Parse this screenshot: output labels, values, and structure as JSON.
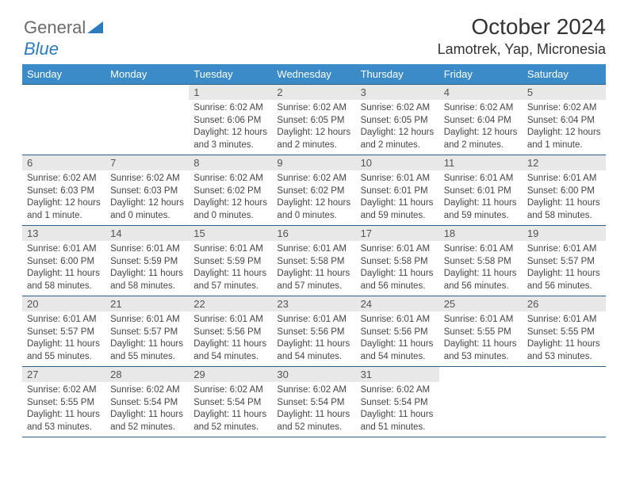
{
  "logo": {
    "part1": "General",
    "part2": "Blue"
  },
  "header": {
    "title": "October 2024",
    "location": "Lamotrek, Yap, Micronesia"
  },
  "colors": {
    "header_bg": "#3b8bc8",
    "header_text": "#ffffff",
    "row_border": "#2f5d84",
    "daynum_bg": "#e8e8e8",
    "logo_blue": "#2b7bbf"
  },
  "weekdays": [
    "Sunday",
    "Monday",
    "Tuesday",
    "Wednesday",
    "Thursday",
    "Friday",
    "Saturday"
  ],
  "weeks": [
    [
      null,
      null,
      {
        "n": "1",
        "sr": "Sunrise: 6:02 AM",
        "ss": "Sunset: 6:06 PM",
        "dl": "Daylight: 12 hours and 3 minutes."
      },
      {
        "n": "2",
        "sr": "Sunrise: 6:02 AM",
        "ss": "Sunset: 6:05 PM",
        "dl": "Daylight: 12 hours and 2 minutes."
      },
      {
        "n": "3",
        "sr": "Sunrise: 6:02 AM",
        "ss": "Sunset: 6:05 PM",
        "dl": "Daylight: 12 hours and 2 minutes."
      },
      {
        "n": "4",
        "sr": "Sunrise: 6:02 AM",
        "ss": "Sunset: 6:04 PM",
        "dl": "Daylight: 12 hours and 2 minutes."
      },
      {
        "n": "5",
        "sr": "Sunrise: 6:02 AM",
        "ss": "Sunset: 6:04 PM",
        "dl": "Daylight: 12 hours and 1 minute."
      }
    ],
    [
      {
        "n": "6",
        "sr": "Sunrise: 6:02 AM",
        "ss": "Sunset: 6:03 PM",
        "dl": "Daylight: 12 hours and 1 minute."
      },
      {
        "n": "7",
        "sr": "Sunrise: 6:02 AM",
        "ss": "Sunset: 6:03 PM",
        "dl": "Daylight: 12 hours and 0 minutes."
      },
      {
        "n": "8",
        "sr": "Sunrise: 6:02 AM",
        "ss": "Sunset: 6:02 PM",
        "dl": "Daylight: 12 hours and 0 minutes."
      },
      {
        "n": "9",
        "sr": "Sunrise: 6:02 AM",
        "ss": "Sunset: 6:02 PM",
        "dl": "Daylight: 12 hours and 0 minutes."
      },
      {
        "n": "10",
        "sr": "Sunrise: 6:01 AM",
        "ss": "Sunset: 6:01 PM",
        "dl": "Daylight: 11 hours and 59 minutes."
      },
      {
        "n": "11",
        "sr": "Sunrise: 6:01 AM",
        "ss": "Sunset: 6:01 PM",
        "dl": "Daylight: 11 hours and 59 minutes."
      },
      {
        "n": "12",
        "sr": "Sunrise: 6:01 AM",
        "ss": "Sunset: 6:00 PM",
        "dl": "Daylight: 11 hours and 58 minutes."
      }
    ],
    [
      {
        "n": "13",
        "sr": "Sunrise: 6:01 AM",
        "ss": "Sunset: 6:00 PM",
        "dl": "Daylight: 11 hours and 58 minutes."
      },
      {
        "n": "14",
        "sr": "Sunrise: 6:01 AM",
        "ss": "Sunset: 5:59 PM",
        "dl": "Daylight: 11 hours and 58 minutes."
      },
      {
        "n": "15",
        "sr": "Sunrise: 6:01 AM",
        "ss": "Sunset: 5:59 PM",
        "dl": "Daylight: 11 hours and 57 minutes."
      },
      {
        "n": "16",
        "sr": "Sunrise: 6:01 AM",
        "ss": "Sunset: 5:58 PM",
        "dl": "Daylight: 11 hours and 57 minutes."
      },
      {
        "n": "17",
        "sr": "Sunrise: 6:01 AM",
        "ss": "Sunset: 5:58 PM",
        "dl": "Daylight: 11 hours and 56 minutes."
      },
      {
        "n": "18",
        "sr": "Sunrise: 6:01 AM",
        "ss": "Sunset: 5:58 PM",
        "dl": "Daylight: 11 hours and 56 minutes."
      },
      {
        "n": "19",
        "sr": "Sunrise: 6:01 AM",
        "ss": "Sunset: 5:57 PM",
        "dl": "Daylight: 11 hours and 56 minutes."
      }
    ],
    [
      {
        "n": "20",
        "sr": "Sunrise: 6:01 AM",
        "ss": "Sunset: 5:57 PM",
        "dl": "Daylight: 11 hours and 55 minutes."
      },
      {
        "n": "21",
        "sr": "Sunrise: 6:01 AM",
        "ss": "Sunset: 5:57 PM",
        "dl": "Daylight: 11 hours and 55 minutes."
      },
      {
        "n": "22",
        "sr": "Sunrise: 6:01 AM",
        "ss": "Sunset: 5:56 PM",
        "dl": "Daylight: 11 hours and 54 minutes."
      },
      {
        "n": "23",
        "sr": "Sunrise: 6:01 AM",
        "ss": "Sunset: 5:56 PM",
        "dl": "Daylight: 11 hours and 54 minutes."
      },
      {
        "n": "24",
        "sr": "Sunrise: 6:01 AM",
        "ss": "Sunset: 5:56 PM",
        "dl": "Daylight: 11 hours and 54 minutes."
      },
      {
        "n": "25",
        "sr": "Sunrise: 6:01 AM",
        "ss": "Sunset: 5:55 PM",
        "dl": "Daylight: 11 hours and 53 minutes."
      },
      {
        "n": "26",
        "sr": "Sunrise: 6:01 AM",
        "ss": "Sunset: 5:55 PM",
        "dl": "Daylight: 11 hours and 53 minutes."
      }
    ],
    [
      {
        "n": "27",
        "sr": "Sunrise: 6:02 AM",
        "ss": "Sunset: 5:55 PM",
        "dl": "Daylight: 11 hours and 53 minutes."
      },
      {
        "n": "28",
        "sr": "Sunrise: 6:02 AM",
        "ss": "Sunset: 5:54 PM",
        "dl": "Daylight: 11 hours and 52 minutes."
      },
      {
        "n": "29",
        "sr": "Sunrise: 6:02 AM",
        "ss": "Sunset: 5:54 PM",
        "dl": "Daylight: 11 hours and 52 minutes."
      },
      {
        "n": "30",
        "sr": "Sunrise: 6:02 AM",
        "ss": "Sunset: 5:54 PM",
        "dl": "Daylight: 11 hours and 52 minutes."
      },
      {
        "n": "31",
        "sr": "Sunrise: 6:02 AM",
        "ss": "Sunset: 5:54 PM",
        "dl": "Daylight: 11 hours and 51 minutes."
      },
      null,
      null
    ]
  ]
}
